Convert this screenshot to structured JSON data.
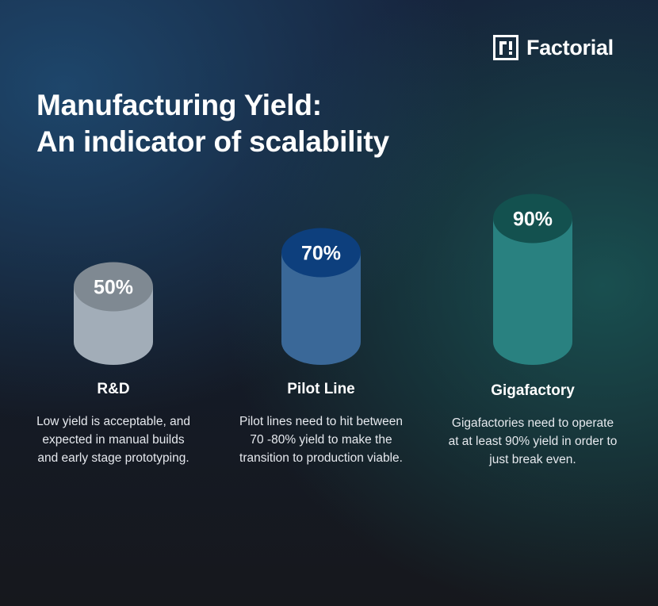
{
  "brand": {
    "name": "Factorial"
  },
  "title": {
    "line1": "Manufacturing Yield:",
    "line2": "An indicator of scalability"
  },
  "chart_data": {
    "type": "bar",
    "categories": [
      "R&D",
      "Pilot Line",
      "Gigafactory"
    ],
    "values": [
      50,
      70,
      90
    ],
    "value_labels": [
      "50%",
      "70%",
      "90%"
    ],
    "unit": "%",
    "colors": {
      "bodies": [
        "#a2adb8",
        "#3a6898",
        "#298180"
      ],
      "tops": [
        "#7f8992",
        "#0d3f7d",
        "#13514f"
      ]
    },
    "descriptions": [
      "Low yield is acceptable, and expected in manual builds and early stage prototyping.",
      "Pilot lines need to hit between 70 -80% yield to make the transition to production viable.",
      "Gigafactories need to operate at at least 90% yield in order to just break even."
    ]
  }
}
